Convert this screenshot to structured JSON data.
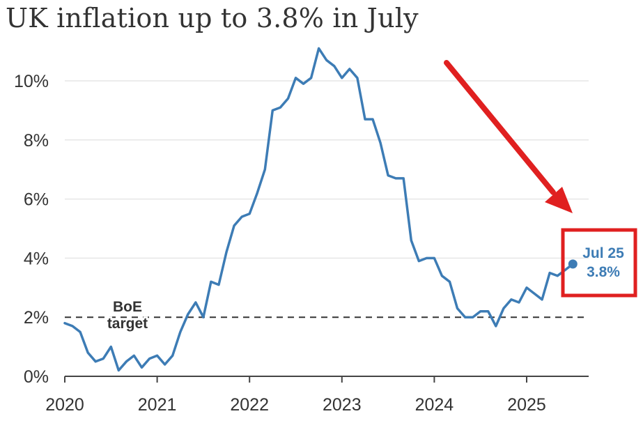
{
  "title": "UK inflation up to 3.8% in July",
  "colors": {
    "line": "#3d7cb5",
    "grid": "#e6e6e6",
    "axis": "#444444",
    "reference": "#333333",
    "highlight": "#e02020"
  },
  "chart_data": {
    "type": "line",
    "title": "UK inflation up to 3.8% in July",
    "xlabel": "",
    "ylabel": "",
    "xlim": [
      2020,
      2025.65
    ],
    "ylim": [
      0,
      11
    ],
    "x_ticks": [
      {
        "value": 2020,
        "label": "2020"
      },
      {
        "value": 2021,
        "label": "2021"
      },
      {
        "value": 2022,
        "label": "2022"
      },
      {
        "value": 2023,
        "label": "2023"
      },
      {
        "value": 2024,
        "label": "2024"
      },
      {
        "value": 2025,
        "label": "2025"
      }
    ],
    "y_ticks": [
      {
        "value": 0,
        "label": "0%"
      },
      {
        "value": 2,
        "label": "2%"
      },
      {
        "value": 4,
        "label": "4%"
      },
      {
        "value": 6,
        "label": "6%"
      },
      {
        "value": 8,
        "label": "8%"
      },
      {
        "value": 10,
        "label": "10%"
      }
    ],
    "grid": true,
    "start": "2020-01",
    "values": [
      1.8,
      1.7,
      1.5,
      0.8,
      0.5,
      0.6,
      1.0,
      0.2,
      0.5,
      0.7,
      0.3,
      0.6,
      0.7,
      0.4,
      0.7,
      1.5,
      2.1,
      2.5,
      2.0,
      3.2,
      3.1,
      4.2,
      5.1,
      5.4,
      5.5,
      6.2,
      7.0,
      9.0,
      9.1,
      9.4,
      10.1,
      9.9,
      10.1,
      11.1,
      10.7,
      10.5,
      10.1,
      10.4,
      10.1,
      8.7,
      8.7,
      7.9,
      6.8,
      6.7,
      6.7,
      4.6,
      3.9,
      4.0,
      4.0,
      3.4,
      3.2,
      2.3,
      2.0,
      2.0,
      2.2,
      2.2,
      1.7,
      2.3,
      2.6,
      2.5,
      3.0,
      2.8,
      2.6,
      3.5,
      3.4,
      3.6,
      3.8
    ],
    "reference_line": {
      "value": 2,
      "label_lines": [
        "BoE",
        "target"
      ]
    },
    "annotation": {
      "lines": [
        "Jul 25",
        "3.8%"
      ]
    }
  }
}
